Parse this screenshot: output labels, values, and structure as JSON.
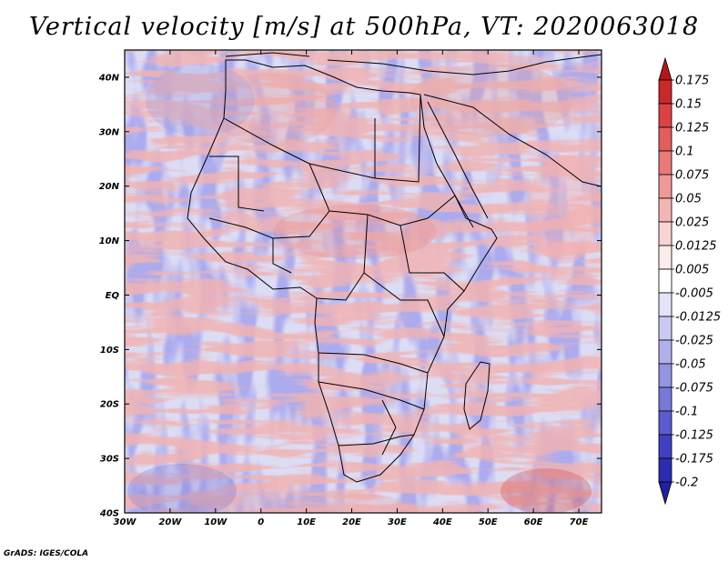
{
  "title": "Vertical velocity [m/s] at 500hPa, VT: 2020063018",
  "credit": "GrADS: IGES/COLA",
  "map": {
    "region": "Africa",
    "variable": "Vertical velocity",
    "units": "m/s",
    "level": "500hPa",
    "valid_time": "2020063018",
    "lon_range": [
      -30,
      75
    ],
    "lat_range": [
      -40,
      45
    ],
    "x_ticks": [
      "30W",
      "20W",
      "10W",
      "0",
      "10E",
      "20E",
      "30E",
      "40E",
      "50E",
      "60E",
      "70E"
    ],
    "y_ticks": [
      "40N",
      "30N",
      "20N",
      "10N",
      "EQ",
      "10S",
      "20S",
      "30S",
      "40S"
    ]
  },
  "colorbar": {
    "levels": [
      "0.175",
      "0.15",
      "0.125",
      "0.1",
      "0.075",
      "0.05",
      "0.025",
      "0.0125",
      "0.005",
      "-0.005",
      "-0.0125",
      "-0.025",
      "-0.05",
      "-0.075",
      "-0.1",
      "-0.125",
      "-0.175",
      "-0.2"
    ],
    "colors": [
      "#b2181b",
      "#c8292b",
      "#db4343",
      "#e25e5e",
      "#e87a7a",
      "#ee9898",
      "#f3b6b6",
      "#f8d4d4",
      "#fcecec",
      "#ffffff",
      "#e4e4f8",
      "#cacaf1",
      "#b0b0ea",
      "#9494e2",
      "#7878d8",
      "#5c5cce",
      "#4040c2",
      "#2c2cb0",
      "#2020a0"
    ]
  }
}
